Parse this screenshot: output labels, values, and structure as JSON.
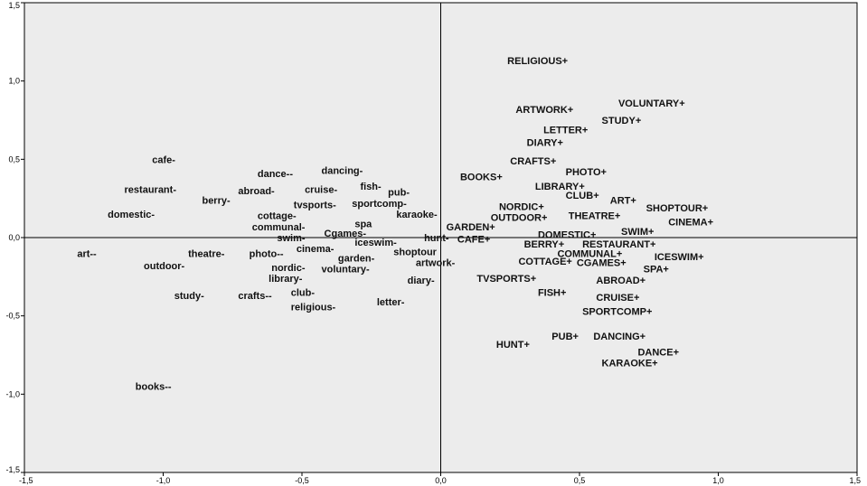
{
  "chart_data": {
    "type": "scatter",
    "title": "",
    "xlabel": "",
    "ylabel": "",
    "xlim": [
      -1.5,
      1.5
    ],
    "ylim": [
      -1.5,
      1.5
    ],
    "grid": false,
    "legend": "none",
    "reference_lines": {
      "x": 0,
      "y": 0
    },
    "background": "#ececec",
    "x_ticks": [
      {
        "value": -1.5,
        "label": "-1,5"
      },
      {
        "value": -1.0,
        "label": "-1,0"
      },
      {
        "value": -0.5,
        "label": "-0,5"
      },
      {
        "value": 0.0,
        "label": "0,0"
      },
      {
        "value": 0.5,
        "label": "0,5"
      },
      {
        "value": 1.0,
        "label": "1,0"
      },
      {
        "value": 1.5,
        "label": "1,5"
      }
    ],
    "y_ticks": [
      {
        "value": 1.5,
        "label": "1,5"
      },
      {
        "value": 1.0,
        "label": "1,0"
      },
      {
        "value": 0.5,
        "label": "0,5"
      },
      {
        "value": 0.0,
        "label": "0,0"
      },
      {
        "value": -0.5,
        "label": "-0,5"
      },
      {
        "value": -1.0,
        "label": "-1,0"
      },
      {
        "value": -1.5,
        "label": "-1,5"
      }
    ],
    "points": [
      {
        "label": "RELIGIOUS+",
        "x": 0.24,
        "y": 1.13
      },
      {
        "label": "VOLUNTARY+",
        "x": 0.64,
        "y": 0.86
      },
      {
        "label": "ARTWORK+",
        "x": 0.27,
        "y": 0.82
      },
      {
        "label": "STUDY+",
        "x": 0.58,
        "y": 0.75
      },
      {
        "label": "LETTER+",
        "x": 0.37,
        "y": 0.69
      },
      {
        "label": "DIARY+",
        "x": 0.31,
        "y": 0.61
      },
      {
        "label": "CRAFTS+",
        "x": 0.25,
        "y": 0.49
      },
      {
        "label": "PHOTO+",
        "x": 0.45,
        "y": 0.42
      },
      {
        "label": "BOOKS+",
        "x": 0.07,
        "y": 0.39
      },
      {
        "label": "LIBRARY+",
        "x": 0.34,
        "y": 0.33
      },
      {
        "label": "CLUB+",
        "x": 0.45,
        "y": 0.27
      },
      {
        "label": "ART+",
        "x": 0.61,
        "y": 0.24
      },
      {
        "label": "NORDIC+",
        "x": 0.21,
        "y": 0.2
      },
      {
        "label": "SHOPTOUR+",
        "x": 0.74,
        "y": 0.19
      },
      {
        "label": "OUTDOOR+",
        "x": 0.18,
        "y": 0.13
      },
      {
        "label": "THEATRE+",
        "x": 0.46,
        "y": 0.14
      },
      {
        "label": "CINEMA+",
        "x": 0.82,
        "y": 0.1
      },
      {
        "label": "GARDEN+",
        "x": 0.02,
        "y": 0.07
      },
      {
        "label": "SWIM+",
        "x": 0.65,
        "y": 0.04
      },
      {
        "label": "DOMESTIC+",
        "x": 0.35,
        "y": 0.02
      },
      {
        "label": "CAFE+",
        "x": 0.06,
        "y": -0.01
      },
      {
        "label": "BERRY+",
        "x": 0.3,
        "y": -0.04
      },
      {
        "label": "RESTAURANT+",
        "x": 0.51,
        "y": -0.04
      },
      {
        "label": "COMMUNAL+",
        "x": 0.42,
        "y": -0.1
      },
      {
        "label": "ICESWIM+",
        "x": 0.77,
        "y": -0.12
      },
      {
        "label": "COTTAGE+",
        "x": 0.28,
        "y": -0.15
      },
      {
        "label": "CGAMES+",
        "x": 0.49,
        "y": -0.16
      },
      {
        "label": "SPA+",
        "x": 0.73,
        "y": -0.2
      },
      {
        "label": "ABROAD+",
        "x": 0.56,
        "y": -0.27
      },
      {
        "label": "TVSPORTS+",
        "x": 0.13,
        "y": -0.26
      },
      {
        "label": "FISH+",
        "x": 0.35,
        "y": -0.35
      },
      {
        "label": "CRUISE+",
        "x": 0.56,
        "y": -0.38
      },
      {
        "label": "SPORTCOMP+",
        "x": 0.51,
        "y": -0.47
      },
      {
        "label": "PUB+",
        "x": 0.4,
        "y": -0.63
      },
      {
        "label": "DANCING+",
        "x": 0.55,
        "y": -0.63
      },
      {
        "label": "HUNT+",
        "x": 0.2,
        "y": -0.68
      },
      {
        "label": "DANCE+",
        "x": 0.71,
        "y": -0.73
      },
      {
        "label": "KARAOKE+",
        "x": 0.58,
        "y": -0.8
      },
      {
        "label": "cafe-",
        "x": -1.04,
        "y": 0.5
      },
      {
        "label": "dance--",
        "x": -0.66,
        "y": 0.41
      },
      {
        "label": "dancing-",
        "x": -0.43,
        "y": 0.43
      },
      {
        "label": "fish-",
        "x": -0.29,
        "y": 0.33
      },
      {
        "label": "restaurant-",
        "x": -1.14,
        "y": 0.31
      },
      {
        "label": "abroad-",
        "x": -0.73,
        "y": 0.3
      },
      {
        "label": "cruise-",
        "x": -0.49,
        "y": 0.31
      },
      {
        "label": "pub-",
        "x": -0.19,
        "y": 0.29
      },
      {
        "label": "berry-",
        "x": -0.86,
        "y": 0.24
      },
      {
        "label": "tvsports-",
        "x": -0.53,
        "y": 0.21
      },
      {
        "label": "sportcomp-",
        "x": -0.32,
        "y": 0.22
      },
      {
        "label": "domestic-",
        "x": -1.2,
        "y": 0.15
      },
      {
        "label": "cottage-",
        "x": -0.66,
        "y": 0.14
      },
      {
        "label": "karaoke-",
        "x": -0.16,
        "y": 0.15
      },
      {
        "label": "communal-",
        "x": -0.68,
        "y": 0.07
      },
      {
        "label": "spa",
        "x": -0.31,
        "y": 0.09
      },
      {
        "label": "swim-",
        "x": -0.59,
        "y": 0.0
      },
      {
        "label": "Cgames-",
        "x": -0.42,
        "y": 0.03
      },
      {
        "label": "hunt-",
        "x": -0.06,
        "y": 0.0
      },
      {
        "label": "iceswim-",
        "x": -0.31,
        "y": -0.03
      },
      {
        "label": "art--",
        "x": -1.31,
        "y": -0.1
      },
      {
        "label": "theatre-",
        "x": -0.91,
        "y": -0.1
      },
      {
        "label": "photo--",
        "x": -0.69,
        "y": -0.1
      },
      {
        "label": "cinema-",
        "x": -0.52,
        "y": -0.07
      },
      {
        "label": "shoptour",
        "x": -0.17,
        "y": -0.09
      },
      {
        "label": "garden-",
        "x": -0.37,
        "y": -0.13
      },
      {
        "label": "artwork-",
        "x": -0.09,
        "y": -0.16
      },
      {
        "label": "outdoor-",
        "x": -1.07,
        "y": -0.18
      },
      {
        "label": "nordic-",
        "x": -0.61,
        "y": -0.19
      },
      {
        "label": "voluntary-",
        "x": -0.43,
        "y": -0.2
      },
      {
        "label": "library-",
        "x": -0.62,
        "y": -0.26
      },
      {
        "label": "diary-",
        "x": -0.12,
        "y": -0.27
      },
      {
        "label": "study-",
        "x": -0.96,
        "y": -0.37
      },
      {
        "label": "crafts--",
        "x": -0.73,
        "y": -0.37
      },
      {
        "label": "club-",
        "x": -0.54,
        "y": -0.35
      },
      {
        "label": "letter-",
        "x": -0.23,
        "y": -0.41
      },
      {
        "label": "religious-",
        "x": -0.54,
        "y": -0.44
      },
      {
        "label": "books--",
        "x": -1.1,
        "y": -0.95
      }
    ]
  }
}
